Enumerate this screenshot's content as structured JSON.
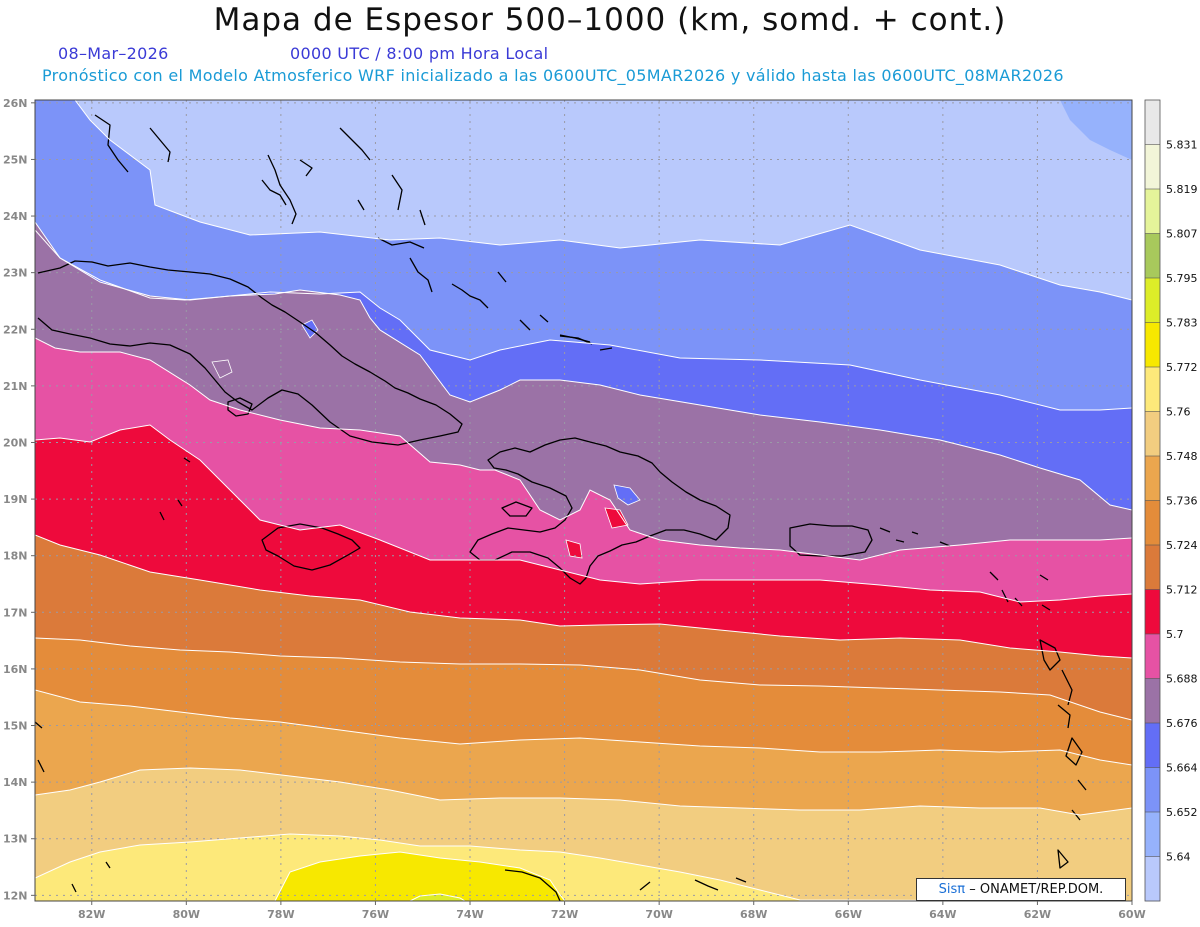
{
  "title": "Mapa de Espesor 500–1000 (km, somd. + cont.)",
  "date": "08–Mar–2026",
  "time": "0000 UTC / 8:00 pm Hora Local",
  "forecast": "Pronóstico con el Modelo Atmosferico WRF inicializado a las 0600UTC_05MAR2026 y válido hasta las  0600UTC_08MAR2026",
  "credit": {
    "logo": "Sisπ",
    "text": "– ONAMET/REP.DOM."
  },
  "lat_labels": [
    "26N",
    "25N",
    "24N",
    "23N",
    "22N",
    "21N",
    "20N",
    "19N",
    "18N",
    "17N",
    "16N",
    "15N",
    "14N",
    "13N",
    "12N"
  ],
  "lon_labels": [
    "82W",
    "80W",
    "78W",
    "76W",
    "74W",
    "72W",
    "70W",
    "68W",
    "66W",
    "64W",
    "62W",
    "60W"
  ],
  "extent": {
    "lon": [
      -83.2,
      -60.0
    ],
    "lat": [
      11.9,
      26.05
    ]
  },
  "colorbar": {
    "labels": [
      "5.831",
      "5.819",
      "5.807",
      "5.795",
      "5.783",
      "5.772",
      "5.76",
      "5.748",
      "5.736",
      "5.724",
      "5.712",
      "5.7",
      "5.688",
      "5.676",
      "5.664",
      "5.652",
      "5.64"
    ],
    "colors": [
      "#e8e8e8",
      "#f2f5d8",
      "#e5f49a",
      "#a8c95c",
      "#dded28",
      "#f7e800",
      "#fde97a",
      "#f2cd80",
      "#eba64e",
      "#e48c3a",
      "#db7a3a",
      "#ee0a3c",
      "#e652a4",
      "#9b72a6",
      "#636ef6",
      "#7c93f8",
      "#96b2fc",
      "#b9c9fc"
    ]
  },
  "map_colors": {
    "b0": "#b9c9fc",
    "b1": "#96b2fc",
    "b2": "#7c93f8",
    "b3": "#636ef6",
    "b4": "#9b72a6",
    "b5": "#e652a4",
    "b6": "#ee0a3c",
    "b7": "#db7a3a",
    "b8": "#e48c3a",
    "b9": "#eba64e",
    "b10": "#f2cd80",
    "b11": "#fde97a",
    "b12": "#f7e800",
    "b13": "#dded28"
  }
}
